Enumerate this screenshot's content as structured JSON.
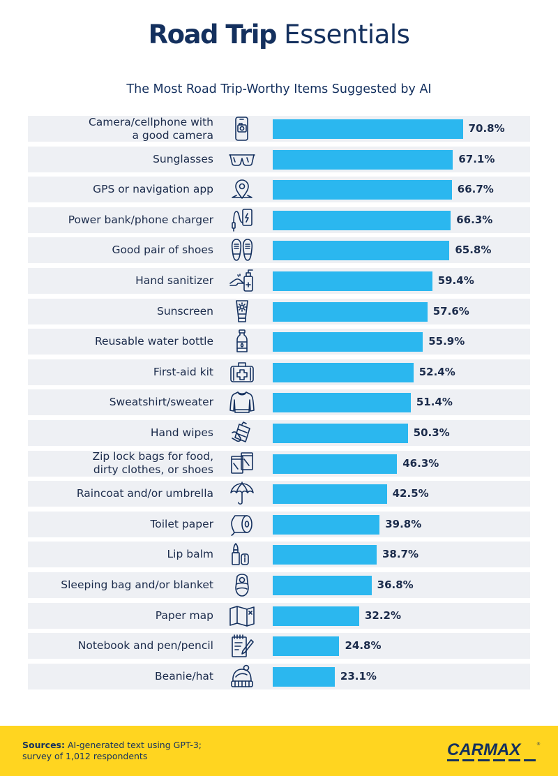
{
  "header": {
    "title_bold": "Road Trip",
    "title_light": "Essentials",
    "subtitle": "The Most Road Trip-Worthy Items Suggested by AI"
  },
  "colors": {
    "bar": "#2bb7ef",
    "row_bg": "#eef0f4",
    "navy": "#14305e",
    "footer": "#ffd520"
  },
  "chart_data": {
    "type": "bar",
    "orientation": "horizontal",
    "title": "Road Trip Essentials",
    "subtitle": "The Most Road Trip-Worthy Items Suggested by AI",
    "xlabel": "",
    "ylabel": "",
    "xlim": [
      0,
      100
    ],
    "value_suffix": "%",
    "categories": [
      "Camera/cellphone with\na good camera",
      "Sunglasses",
      "GPS or navigation app",
      "Power bank/phone charger",
      "Good pair of shoes",
      "Hand sanitizer",
      "Sunscreen",
      "Reusable water bottle",
      "First-aid kit",
      "Sweatshirt/sweater",
      "Hand wipes",
      "Zip lock bags for food,\ndirty clothes, or shoes",
      "Raincoat and/or umbrella",
      "Toilet paper",
      "Lip balm",
      "Sleeping bag and/or blanket",
      "Paper map",
      "Notebook and pen/pencil",
      "Beanie/hat"
    ],
    "values": [
      70.8,
      67.1,
      66.7,
      66.3,
      65.8,
      59.4,
      57.6,
      55.9,
      52.4,
      51.4,
      50.3,
      46.3,
      42.5,
      39.8,
      38.7,
      36.8,
      32.2,
      24.8,
      23.1
    ],
    "value_labels": [
      "70.8%",
      "67.1%",
      "66.7%",
      "66.3%",
      "65.8%",
      "59.4%",
      "57.6%",
      "55.9%",
      "52.4%",
      "51.4%",
      "50.3%",
      "46.3%",
      "42.5%",
      "39.8%",
      "38.7%",
      "36.8%",
      "32.2%",
      "24.8%",
      "23.1%"
    ],
    "icons": [
      "camera-phone-icon",
      "sunglasses-icon",
      "map-pin-icon",
      "power-bank-icon",
      "shoes-icon",
      "hand-sanitizer-icon",
      "sunscreen-icon",
      "water-bottle-icon",
      "first-aid-kit-icon",
      "sweatshirt-icon",
      "hand-wipes-icon",
      "zip-bags-icon",
      "umbrella-icon",
      "toilet-paper-icon",
      "lip-balm-icon",
      "sleeping-bag-icon",
      "paper-map-icon",
      "notebook-pen-icon",
      "beanie-icon"
    ]
  },
  "footer": {
    "sources_label": "Sources:",
    "sources_text": "AI-generated text using GPT-3;\nsurvey of 1,012 respondents",
    "logo_text": "CARMAX"
  }
}
